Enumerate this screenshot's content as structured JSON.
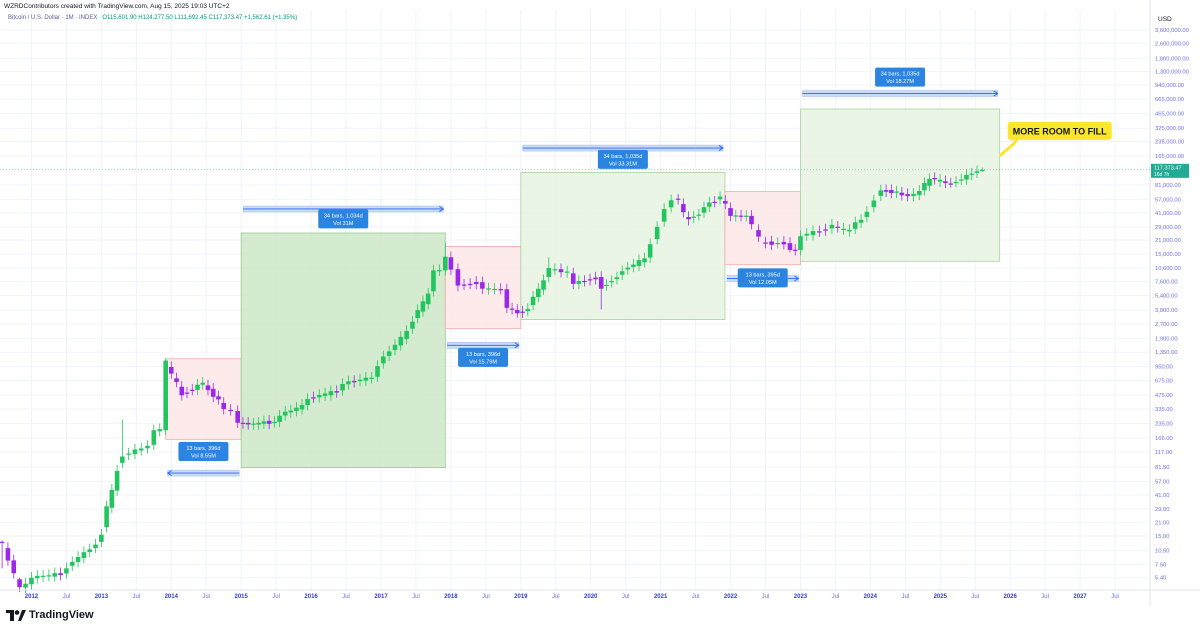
{
  "header": {
    "attribution": "WZRDContributors created with TradingView.com, Aug 15, 2025 19:03 UTC+2",
    "symbol": "Bitcoin / U.S. Dollar · 1M · INDEX",
    "ohlc": "O115,601.90 H124,277.50 L111,692.45 C117,373.47 +1,562.61 (+1.35%)"
  },
  "price_scale": {
    "currency": "USD"
  },
  "branding": {
    "logo_text": "TradingView"
  },
  "chart_data": {
    "type": "candlestick",
    "title": "",
    "y_scale": "log",
    "ylim": [
      4.0,
      3600000
    ],
    "xlim": [
      2011.55,
      2028.0
    ],
    "y_ticks": [
      {
        "v": 3600000,
        "label": "3,600,000.00"
      },
      {
        "v": 2600000,
        "label": "2,600,000.00"
      },
      {
        "v": 1800000,
        "label": "1,800,000.00"
      },
      {
        "v": 1300000,
        "label": "1,300,000.00"
      },
      {
        "v": 940000,
        "label": "940,000.00"
      },
      {
        "v": 665000,
        "label": "665,000.00"
      },
      {
        "v": 465000,
        "label": "465,000.00"
      },
      {
        "v": 325000,
        "label": "325,000.00"
      },
      {
        "v": 235000,
        "label": "235,000.00"
      },
      {
        "v": 165000,
        "label": "165,000.00"
      },
      {
        "v": 81000,
        "label": "81,000.00"
      },
      {
        "v": 57000,
        "label": "57,000.00"
      },
      {
        "v": 41000,
        "label": "41,000.00"
      },
      {
        "v": 29000,
        "label": "29,000.00"
      },
      {
        "v": 21000,
        "label": "21,000.00"
      },
      {
        "v": 15000,
        "label": "15,000.00"
      },
      {
        "v": 10600,
        "label": "10,600.00"
      },
      {
        "v": 7600,
        "label": "7,600.00"
      },
      {
        "v": 5400,
        "label": "5,400.00"
      },
      {
        "v": 3800,
        "label": "3,800.00"
      },
      {
        "v": 2700,
        "label": "2,700.00"
      },
      {
        "v": 1900,
        "label": "1,900.00"
      },
      {
        "v": 1350,
        "label": "1,350.00"
      },
      {
        "v": 950,
        "label": "950.00"
      },
      {
        "v": 675,
        "label": "675.00"
      },
      {
        "v": 475,
        "label": "475.00"
      },
      {
        "v": 335,
        "label": "335.00"
      },
      {
        "v": 235,
        "label": "235.00"
      },
      {
        "v": 166,
        "label": "166.00"
      },
      {
        "v": 117,
        "label": "117.00"
      },
      {
        "v": 81.5,
        "label": "81.50"
      },
      {
        "v": 57,
        "label": "57.00"
      },
      {
        "v": 41,
        "label": "41.00"
      },
      {
        "v": 29,
        "label": "29.00"
      },
      {
        "v": 21,
        "label": "21.00"
      },
      {
        "v": 15,
        "label": "15.00"
      },
      {
        "v": 10.5,
        "label": "10.50"
      },
      {
        "v": 7.5,
        "label": "7.50"
      },
      {
        "v": 5.4,
        "label": "5.40"
      }
    ],
    "x_ticks": [
      {
        "t": 2012.0,
        "label": "2012"
      },
      {
        "t": 2012.5,
        "label": "Jul"
      },
      {
        "t": 2013.0,
        "label": "2013"
      },
      {
        "t": 2013.5,
        "label": "Jul"
      },
      {
        "t": 2014.0,
        "label": "2014"
      },
      {
        "t": 2014.5,
        "label": "Jul"
      },
      {
        "t": 2015.0,
        "label": "2015"
      },
      {
        "t": 2015.5,
        "label": "Jul"
      },
      {
        "t": 2016.0,
        "label": "2016"
      },
      {
        "t": 2016.5,
        "label": "Jul"
      },
      {
        "t": 2017.0,
        "label": "2017"
      },
      {
        "t": 2017.5,
        "label": "Jul"
      },
      {
        "t": 2018.0,
        "label": "2018"
      },
      {
        "t": 2018.5,
        "label": "Jul"
      },
      {
        "t": 2019.0,
        "label": "2019"
      },
      {
        "t": 2019.5,
        "label": "Jul"
      },
      {
        "t": 2020.0,
        "label": "2020"
      },
      {
        "t": 2020.5,
        "label": "Jul"
      },
      {
        "t": 2021.0,
        "label": "2021"
      },
      {
        "t": 2021.5,
        "label": "Jul"
      },
      {
        "t": 2022.0,
        "label": "2022"
      },
      {
        "t": 2022.5,
        "label": "Jul"
      },
      {
        "t": 2023.0,
        "label": "2023"
      },
      {
        "t": 2023.5,
        "label": "Jul"
      },
      {
        "t": 2024.0,
        "label": "2024"
      },
      {
        "t": 2024.5,
        "label": "Jul"
      },
      {
        "t": 2025.0,
        "label": "2025"
      },
      {
        "t": 2025.5,
        "label": "Jul"
      },
      {
        "t": 2026.0,
        "label": "2026"
      },
      {
        "t": 2026.5,
        "label": "Jul"
      },
      {
        "t": 2027.0,
        "label": "2027"
      },
      {
        "t": 2027.5,
        "label": "Jul"
      }
    ],
    "last_price": {
      "value": 117373.47,
      "label": "117,373.47",
      "sub_label": "16d 7h",
      "color": "#22ab94"
    },
    "colors": {
      "up": "#22c55e",
      "down": "#9b27e8",
      "grid": "#f0f3fa",
      "axis_text": "#6a6df0"
    },
    "anchors": [
      {
        "t": 2011.58,
        "o": 13.0,
        "c": 13.0,
        "dir": "down",
        "lo": 6.8,
        "hi": 13.5
      },
      {
        "t": 2011.83,
        "o": 5.2,
        "c": 4.3,
        "dir": "down",
        "lo": 3.8,
        "hi": 5.4
      },
      {
        "t": 2012.0,
        "o": 4.6,
        "c": 5.4,
        "dir": "up"
      },
      {
        "t": 2012.5,
        "o": 6.0,
        "c": 6.8,
        "dir": "up"
      },
      {
        "t": 2013.0,
        "o": 13.0,
        "c": 15.5,
        "dir": "up"
      },
      {
        "t": 2013.3,
        "o": 90.0,
        "c": 105.0,
        "dir": "up",
        "hi": 260
      },
      {
        "t": 2013.75,
        "o": 140.0,
        "c": 200.0,
        "dir": "up"
      },
      {
        "t": 2013.92,
        "o": 200.0,
        "c": 1100.0,
        "dir": "up",
        "hi": 1160
      },
      {
        "t": 2014.0,
        "o": 940.0,
        "c": 800.0,
        "dir": "down"
      },
      {
        "t": 2014.15,
        "o": 580.0,
        "c": 470.0,
        "dir": "down"
      },
      {
        "t": 2014.45,
        "o": 610.0,
        "c": 640.0,
        "dir": "up"
      },
      {
        "t": 2014.75,
        "o": 390.0,
        "c": 335.0,
        "dir": "down"
      },
      {
        "t": 2014.95,
        "o": 320.0,
        "c": 240.0,
        "dir": "down"
      },
      {
        "t": 2015.25,
        "o": 230.0,
        "c": 240.0,
        "dir": "up"
      },
      {
        "t": 2015.55,
        "o": 245.0,
        "c": 285.0,
        "dir": "up"
      },
      {
        "t": 2015.95,
        "o": 370.0,
        "c": 430.0,
        "dir": "up"
      },
      {
        "t": 2016.45,
        "o": 530.0,
        "c": 620.0,
        "dir": "up"
      },
      {
        "t": 2016.95,
        "o": 740.0,
        "c": 960.0,
        "dir": "up"
      },
      {
        "t": 2017.45,
        "o": 2400.0,
        "c": 2850.0,
        "dir": "up"
      },
      {
        "t": 2017.75,
        "o": 6000.0,
        "c": 10000.0,
        "dir": "up"
      },
      {
        "t": 2017.92,
        "o": 10000.0,
        "c": 14000.0,
        "dir": "up",
        "hi": 19800
      },
      {
        "t": 2018.0,
        "o": 13800.0,
        "c": 10200.0,
        "dir": "down"
      },
      {
        "t": 2018.1,
        "o": 10300.0,
        "c": 6900.0,
        "dir": "down",
        "lo": 6000
      },
      {
        "t": 2018.45,
        "o": 7500.0,
        "c": 6400.0,
        "dir": "down"
      },
      {
        "t": 2018.8,
        "o": 6300.0,
        "c": 4000.0,
        "dir": "down"
      },
      {
        "t": 2018.95,
        "o": 3800.0,
        "c": 3500.0,
        "dir": "down",
        "lo": 3150
      },
      {
        "t": 2019.1,
        "o": 3700.0,
        "c": 3900.0,
        "dir": "up"
      },
      {
        "t": 2019.4,
        "o": 8500.0,
        "c": 10600.0,
        "dir": "up",
        "hi": 13800
      },
      {
        "t": 2019.75,
        "o": 9300.0,
        "c": 7200.0,
        "dir": "down"
      },
      {
        "t": 2020.15,
        "o": 8500.0,
        "c": 6400.0,
        "dir": "down",
        "lo": 3850
      },
      {
        "t": 2020.45,
        "o": 9000.0,
        "c": 9800.0,
        "dir": "up"
      },
      {
        "t": 2020.85,
        "o": 13700.0,
        "c": 19000.0,
        "dir": "up"
      },
      {
        "t": 2021.05,
        "o": 33000.0,
        "c": 45000.0,
        "dir": "up"
      },
      {
        "t": 2021.25,
        "o": 58000.0,
        "c": 57000.0,
        "dir": "down",
        "hi": 64800
      },
      {
        "t": 2021.4,
        "o": 37000.0,
        "c": 35000.0,
        "dir": "down",
        "lo": 30000
      },
      {
        "t": 2021.62,
        "o": 41000.0,
        "c": 47000.0,
        "dir": "up"
      },
      {
        "t": 2021.85,
        "o": 57000.0,
        "c": 61000.0,
        "dir": "up",
        "hi": 69000
      },
      {
        "t": 2022.0,
        "o": 46000.0,
        "c": 38000.0,
        "dir": "down"
      },
      {
        "t": 2022.3,
        "o": 38000.0,
        "c": 31000.0,
        "dir": "down"
      },
      {
        "t": 2022.5,
        "o": 19800.0,
        "c": 19500.0,
        "dir": "down"
      },
      {
        "t": 2022.85,
        "o": 19500.0,
        "c": 16500.0,
        "dir": "down",
        "lo": 15500
      },
      {
        "t": 2023.0,
        "o": 16500.0,
        "c": 23100.0,
        "dir": "up"
      },
      {
        "t": 2023.45,
        "o": 28000.0,
        "c": 30500.0,
        "dir": "up"
      },
      {
        "t": 2023.7,
        "o": 26000.0,
        "c": 27000.0,
        "dir": "up"
      },
      {
        "t": 2023.95,
        "o": 37000.0,
        "c": 42000.0,
        "dir": "up"
      },
      {
        "t": 2024.15,
        "o": 62000.0,
        "c": 71000.0,
        "dir": "up"
      },
      {
        "t": 2024.45,
        "o": 67000.0,
        "c": 63000.0,
        "dir": "down"
      },
      {
        "t": 2024.7,
        "o": 63500.0,
        "c": 70000.0,
        "dir": "up"
      },
      {
        "t": 2024.92,
        "o": 96000.0,
        "c": 93000.0,
        "dir": "down"
      },
      {
        "t": 2025.15,
        "o": 84000.0,
        "c": 82000.0,
        "dir": "down",
        "lo": 76000
      },
      {
        "t": 2025.45,
        "o": 104000.0,
        "c": 107000.0,
        "dir": "up"
      },
      {
        "t": 2025.6,
        "o": 115600.0,
        "c": 117373.0,
        "dir": "up",
        "hi": 124277,
        "lo": 111692
      }
    ],
    "annotations": [
      {
        "kind": "range",
        "label": "13 bars, 396d",
        "volume": "Vol 8.55M",
        "t0": 2013.92,
        "t1": 2015.0,
        "v0": 1150,
        "v1": 160,
        "fill": "#fde7e7",
        "stroke": "#f4a9a9",
        "arrow_v": 70,
        "arrow_dir": "left",
        "label_v": 150,
        "label_side": "below"
      },
      {
        "kind": "range",
        "label": "34 bars, 1,034d",
        "volume": "Vol 31M",
        "t0": 2015.0,
        "t1": 2017.92,
        "v0": 25000,
        "v1": 80,
        "fill": "#cce8c7",
        "stroke": "#9acb93",
        "arrow_v": 45000,
        "arrow_dir": "right",
        "label_v": 28000,
        "label_side": "above"
      },
      {
        "kind": "range",
        "label": "13 bars, 396d",
        "volume": "Vol 15.79M",
        "t0": 2017.92,
        "t1": 2019.0,
        "v0": 18000,
        "v1": 2400,
        "fill": "#fde7e7",
        "stroke": "#f4a9a9",
        "arrow_v": 1600,
        "arrow_dir": "right",
        "label_v": 1500,
        "label_side": "below"
      },
      {
        "kind": "range",
        "label": "34 bars, 1,035d",
        "volume": "Vol 33.31M",
        "t0": 2019.0,
        "t1": 2021.92,
        "v0": 110000,
        "v1": 3000,
        "fill": "#e6f3e2",
        "stroke": "#aad2a4",
        "arrow_v": 200000,
        "arrow_dir": "right",
        "label_v": 120000,
        "label_side": "above"
      },
      {
        "kind": "range",
        "label": "13 bars, 395d",
        "volume": "Vol 12.05M",
        "t0": 2021.92,
        "t1": 2023.0,
        "v0": 69000,
        "v1": 11500,
        "fill": "#fde7e7",
        "stroke": "#f4a9a9",
        "arrow_v": 8200,
        "arrow_dir": "right",
        "label_v": 10500,
        "label_side": "below"
      },
      {
        "kind": "range",
        "label": "34 bars, 1,035d",
        "volume": "Vol 18.27M",
        "t0": 2023.0,
        "t1": 2025.85,
        "v0": 520000,
        "v1": 12500,
        "fill": "#e6f3e2",
        "stroke": "#aad2a4",
        "arrow_v": 760000,
        "arrow_dir": "right",
        "label_v": 900000,
        "label_side": "above"
      }
    ],
    "callout": {
      "text": "MORE ROOM TO FILL",
      "t": 2025.85,
      "v": 165000,
      "fill": "#fbe62a"
    }
  }
}
